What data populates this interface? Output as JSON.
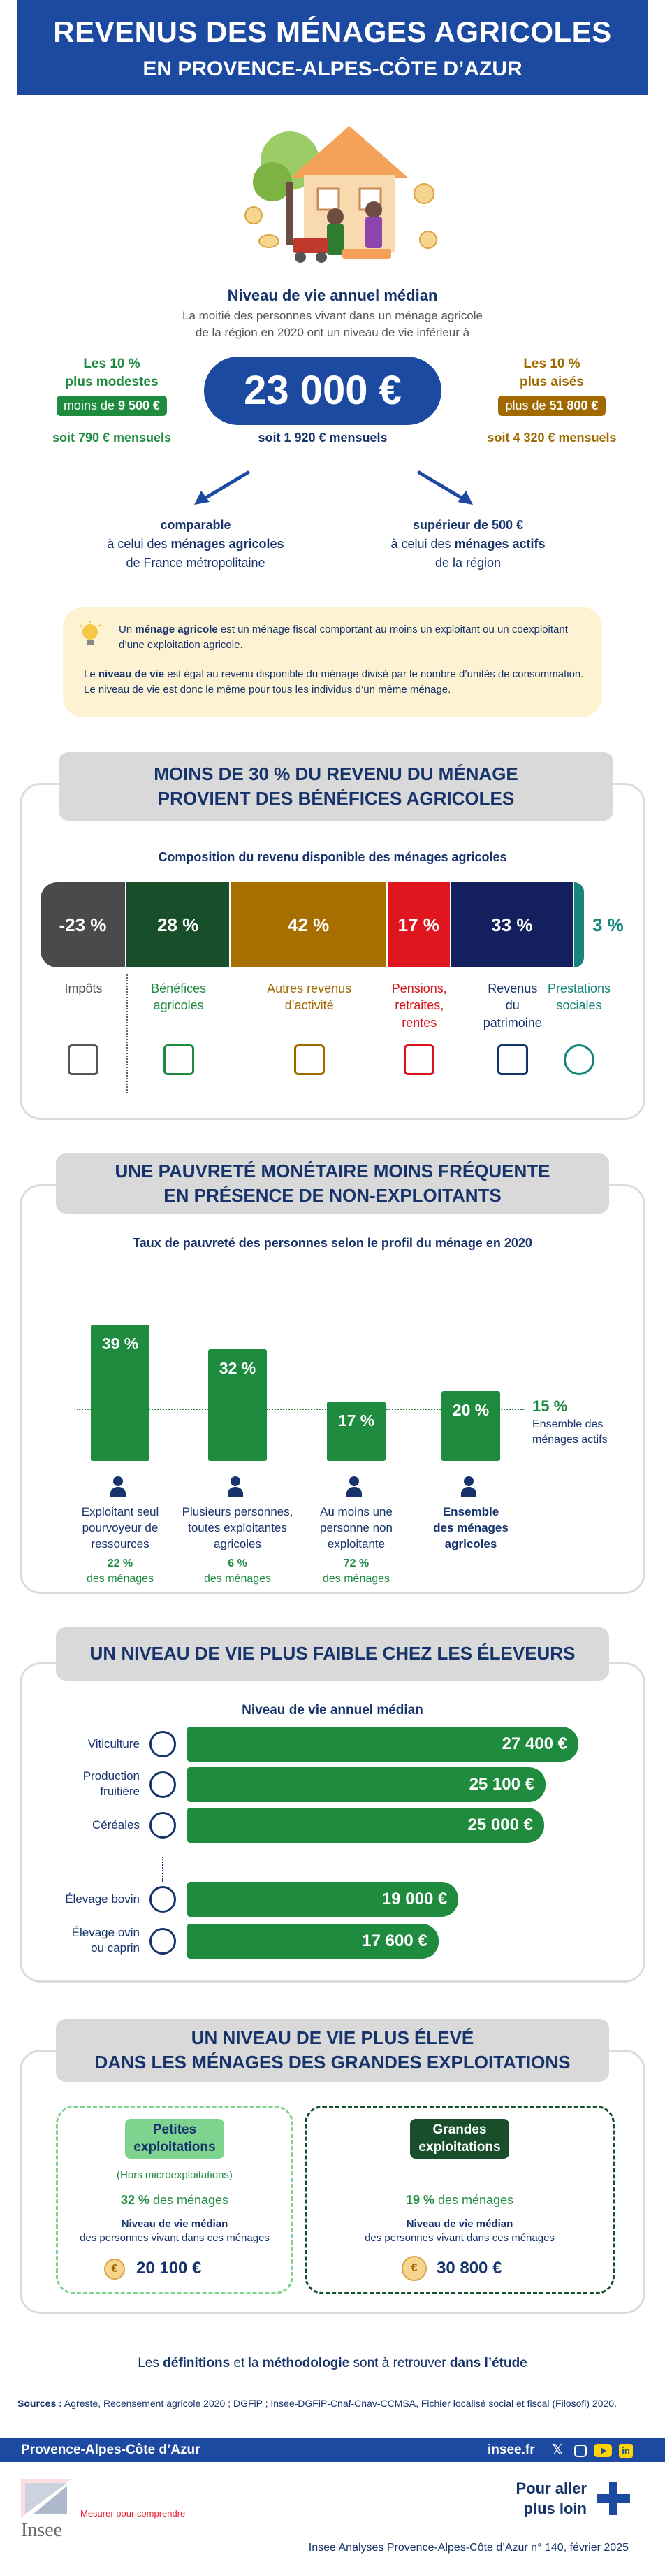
{
  "header": {
    "title": "REVENUS DES MÉNAGES AGRICOLES",
    "subtitle": "EN PROVENCE-ALPES-CÔTE D’AZUR"
  },
  "median": {
    "heading": "Niveau de vie annuel médian",
    "desc1": "La moitié des personnes vivant dans un ménage agricole",
    "desc2": "de la région en 2020 ont un niveau de vie inférieur à",
    "value": "23 000 €",
    "monthly": "soit 1 920 € mensuels",
    "low": {
      "label1": "Les 10 %",
      "label2": "plus modestes",
      "pill_prefix": "moins de ",
      "pill_value": "9 500 €",
      "monthly": "soit 790 € mensuels"
    },
    "high": {
      "label1": "Les 10 %",
      "label2": "plus aisés",
      "pill_prefix": "plus de ",
      "pill_value": "51 800 €",
      "monthly": "soit 4 320 € mensuels"
    },
    "compare_left": {
      "l1": "comparable",
      "l2_prefix": "à celui des ",
      "l2_bold": "ménages agricoles",
      "l3": "de France métropolitaine"
    },
    "compare_right": {
      "l1": "supérieur de 500 €",
      "l2_prefix": "à celui des ",
      "l2_bold": "ménages actifs",
      "l3": "de la région"
    }
  },
  "notes": {
    "p1_a": "Un ",
    "p1_b": "ménage agricole",
    "p1_c": " est un ménage fiscal comportant au moins un exploitant ou un coexploitant d’une exploitation agricole.",
    "p2_a": "Le ",
    "p2_b": "niveau de vie",
    "p2_c": " est égal au revenu disponible du ménage divisé par le nombre d’unités de consommation. Le niveau de vie est donc le même pour tous les individus d’un même ménage."
  },
  "section1": {
    "title1": "MOINS DE 30 % DU REVENU DU MÉNAGE",
    "title2": "PROVIENT DES BÉNÉFICES AGRICOLES",
    "chart_title": "Composition du revenu disponible des ménages agricoles"
  },
  "section2": {
    "title1": "UNE PAUVRETÉ MONÉTAIRE MOINS FRÉQUENTE",
    "title2": "EN PRÉSENCE DE NON-EXPLOITANTS",
    "chart_title": "Taux de pauvreté des personnes selon le profil du ménage en 2020",
    "ref_value": "15 %",
    "ref_label1": "Ensemble des",
    "ref_label2": "ménages actifs",
    "share_suffix": "des ménages"
  },
  "section3": {
    "title": "UN NIVEAU DE VIE PLUS FAIBLE CHEZ LES ÉLEVEURS",
    "chart_title": "Niveau de vie annuel médian"
  },
  "section4": {
    "title1": "UN NIVEAU DE VIE PLUS ÉLEVÉ",
    "title2": "DANS LES MÉNAGES DES GRANDES EXPLOITATIONS",
    "small": {
      "tag1": "Petites",
      "tag2": "exploitations",
      "sub": "(Hors microexploitations)",
      "share": "32 %",
      "share_suffix": " des ménages",
      "lbl1": "Niveau de vie médian",
      "lbl2": "des personnes vivant dans ces ménages",
      "value": "20 100 €"
    },
    "large": {
      "tag1": "Grandes",
      "tag2": "exploitations",
      "share": "19 %",
      "share_suffix": " des ménages",
      "lbl1": "Niveau de vie médian",
      "lbl2": "des personnes vivant dans ces ménages",
      "value": "30 800 €"
    }
  },
  "footer": {
    "study_a": "Les ",
    "study_b": "définitions",
    "study_c": " et la ",
    "study_d": "méthodologie",
    "study_e": " sont à retrouver ",
    "study_f": "dans l’étude",
    "sources_label": "Sources :",
    "sources": " Agreste, Recensement agricole 2020 ; DGFiP ; Insee-DGFiP-Cnaf-Cnav-CCMSA, Fichier localisé social et fiscal (Filosofi) 2020.",
    "region": "Provence-Alpes-Côte d’Azur",
    "site": "insee.fr",
    "cta1": "Pour aller",
    "cta2": "plus loin",
    "brand": "Insee",
    "tagline": "Mesurer pour comprendre",
    "publication": "Insee Analyses Provence-Alpes-Côte d’Azur n° 140, février 2025",
    "colors": {
      "primary": "#1c4aa0",
      "green": "#1e8b3f",
      "brown": "#a06a00"
    }
  },
  "chart_data": [
    {
      "type": "bar",
      "title": "Composition du revenu disponible des ménages agricoles",
      "categories": [
        "Impôts",
        "Bénéfices agricoles",
        "Autres revenus d’activité",
        "Pensions, retraites, rentes",
        "Revenus du patrimoine",
        "Prestations sociales"
      ],
      "values": [
        -23,
        28,
        42,
        17,
        33,
        3
      ],
      "labels": [
        "-23 %",
        "28 %",
        "42 %",
        "17 %",
        "33 %",
        "3 %"
      ],
      "colors": [
        "#4a4a4a",
        "#184f2a",
        "#a66f00",
        "#e0161f",
        "#14205e",
        "#16857c"
      ],
      "label_lines": [
        [
          "Impôts"
        ],
        [
          "Bénéfices",
          "agricoles"
        ],
        [
          "Autres revenus",
          "d’activité"
        ],
        [
          "Pensions,",
          "retraites,",
          "rentes"
        ],
        [
          "Revenus",
          "du",
          "patrimoine"
        ],
        [
          "Prestations",
          "sociales"
        ]
      ],
      "label_colors": [
        "#555555",
        "#1e8b3f",
        "#a06a00",
        "#d7141c",
        "#16336b",
        "#16857c"
      ],
      "icons": [
        "bank-icon",
        "tractor-icon",
        "worker-desk-icon",
        "house-care-icon",
        "house-euro-icon",
        "hand-euro-icon"
      ]
    },
    {
      "type": "bar",
      "title": "Taux de pauvreté des personnes selon le profil du ménage en 2020",
      "categories": [
        "Exploitant seul pourvoyeur de ressources",
        "Plusieurs personnes, toutes exploitantes agricoles",
        "Au moins une personne non exploitante",
        "Ensemble des ménages agricoles"
      ],
      "values": [
        39,
        32,
        17,
        20
      ],
      "labels": [
        "39 %",
        "32 %",
        "17 %",
        "20 %"
      ],
      "label_lines": [
        [
          "Exploitant seul",
          "pourvoyeur de",
          "ressources"
        ],
        [
          "Plusieurs personnes,",
          "toutes exploitantes",
          "agricoles"
        ],
        [
          "Au moins une",
          "personne non",
          "exploitante"
        ],
        [
          "Ensemble",
          "des ménages",
          "agricoles"
        ]
      ],
      "shares": [
        "22 %",
        "6 %",
        "72 %",
        ""
      ],
      "reference": {
        "label": "Ensemble des ménages actifs",
        "value": 15
      },
      "ylim": [
        0,
        45
      ]
    },
    {
      "type": "bar",
      "orientation": "horizontal",
      "title": "Niveau de vie annuel médian",
      "categories": [
        "Viticulture",
        "Production fruitière",
        "Céréales",
        "Élevage bovin",
        "Élevage ovin ou caprin"
      ],
      "label_lines": [
        [
          "Viticulture"
        ],
        [
          "Production",
          "fruitière"
        ],
        [
          "Céréales"
        ],
        [
          "Élevage bovin"
        ],
        [
          "Élevage ovin",
          "ou caprin"
        ]
      ],
      "values": [
        27400,
        25100,
        25000,
        19000,
        17600
      ],
      "labels": [
        "27 400 €",
        "25 100 €",
        "25 000 €",
        "19 000 €",
        "17 600 €"
      ],
      "unit": "€",
      "icons": [
        "grapes-icon",
        "fruits-icon",
        "wheat-icon",
        "cow-icon",
        "sheep-icon"
      ]
    }
  ]
}
